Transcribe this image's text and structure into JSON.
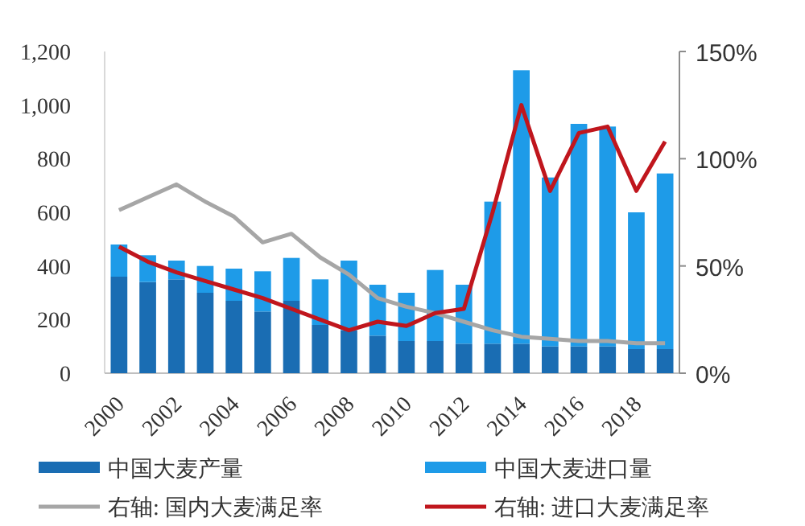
{
  "chart_data": {
    "type": "bar",
    "stacked": true,
    "legend": "bottom",
    "categories": [
      "2000",
      null,
      "2002",
      null,
      "2004",
      null,
      "2006",
      null,
      "2008",
      null,
      "2010",
      null,
      "2012",
      null,
      "2014",
      null,
      "2016",
      null,
      "2018",
      null
    ],
    "series": [
      {
        "name": "中国大麦产量",
        "color": "#1a6db3",
        "values": [
          360,
          340,
          350,
          300,
          270,
          230,
          270,
          180,
          160,
          140,
          120,
          120,
          110,
          110,
          110,
          100,
          100,
          100,
          90,
          90
        ]
      },
      {
        "name": "中国大麦进口量",
        "color": "#1e9be8",
        "values": [
          120,
          100,
          70,
          100,
          120,
          150,
          160,
          170,
          260,
          190,
          180,
          265,
          220,
          530,
          1020,
          630,
          830,
          820,
          510,
          655
        ]
      },
      {
        "name": "右轴: 国内大麦满足率",
        "type": "line",
        "axis": "y2",
        "color": "#a6a6a6",
        "values": [
          76,
          82,
          88,
          80,
          73,
          61,
          65,
          54,
          46,
          35,
          31,
          28,
          24,
          20,
          17,
          16,
          15,
          15,
          14,
          14
        ]
      },
      {
        "name": "右轴: 进口大麦满足率",
        "type": "line",
        "axis": "y2",
        "color": "#c0161d",
        "values": [
          59,
          52,
          47,
          43,
          39,
          35,
          30,
          25,
          20,
          24,
          22,
          28,
          30,
          75,
          125,
          85,
          112,
          115,
          85,
          108
        ]
      }
    ],
    "ylim": [
      0,
      1200
    ],
    "yticks": [
      0,
      200,
      400,
      600,
      800,
      {
        "value": 1000,
        "label": "1,000"
      },
      {
        "value": 1200,
        "label": "1,200"
      }
    ],
    "y2lim": [
      0,
      150
    ],
    "y2ticks": [
      {
        "value": 0,
        "label": "0%"
      },
      {
        "value": 50,
        "label": "50%"
      },
      {
        "value": 100,
        "label": "100%"
      },
      {
        "value": 150,
        "label": "150%"
      }
    ]
  }
}
